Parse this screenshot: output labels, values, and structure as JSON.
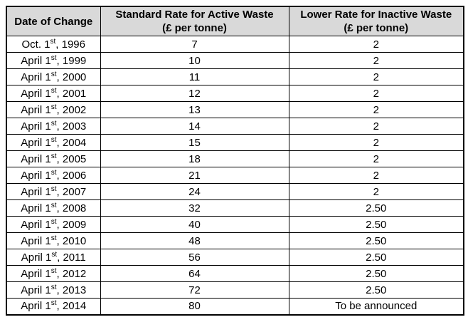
{
  "colors": {
    "header_bg": "#d9d9d9",
    "border": "#000000",
    "page_bg": "#ffffff",
    "text": "#000000"
  },
  "table": {
    "headers": [
      {
        "line1": "Date of Change",
        "line2": ""
      },
      {
        "line1": "Standard Rate for Active Waste",
        "line2": "(£ per tonne)"
      },
      {
        "line1": "Lower Rate for Inactive Waste",
        "line2": "(£ per tonne)"
      }
    ],
    "rows": [
      {
        "date_main": "Oct. 1",
        "date_sup": "st",
        "date_rest": ", 1996",
        "standard": "7",
        "lower": "2"
      },
      {
        "date_main": "April 1",
        "date_sup": "st",
        "date_rest": ", 1999",
        "standard": "10",
        "lower": "2"
      },
      {
        "date_main": "April 1",
        "date_sup": "st",
        "date_rest": ", 2000",
        "standard": "11",
        "lower": "2"
      },
      {
        "date_main": "April 1",
        "date_sup": "st",
        "date_rest": ", 2001",
        "standard": "12",
        "lower": "2"
      },
      {
        "date_main": "April 1",
        "date_sup": "st",
        "date_rest": ", 2002",
        "standard": "13",
        "lower": "2"
      },
      {
        "date_main": "April 1",
        "date_sup": "st",
        "date_rest": ", 2003",
        "standard": "14",
        "lower": "2"
      },
      {
        "date_main": "April 1",
        "date_sup": "st",
        "date_rest": ", 2004",
        "standard": "15",
        "lower": "2"
      },
      {
        "date_main": "April 1",
        "date_sup": "st",
        "date_rest": ", 2005",
        "standard": "18",
        "lower": "2"
      },
      {
        "date_main": "April 1",
        "date_sup": "st",
        "date_rest": ", 2006",
        "standard": "21",
        "lower": "2"
      },
      {
        "date_main": "April 1",
        "date_sup": "st",
        "date_rest": ", 2007",
        "standard": "24",
        "lower": "2"
      },
      {
        "date_main": "April 1",
        "date_sup": "st",
        "date_rest": ", 2008",
        "standard": "32",
        "lower": "2.50"
      },
      {
        "date_main": "April 1",
        "date_sup": "st",
        "date_rest": ", 2009",
        "standard": "40",
        "lower": "2.50"
      },
      {
        "date_main": "April 1",
        "date_sup": "st",
        "date_rest": ", 2010",
        "standard": "48",
        "lower": "2.50"
      },
      {
        "date_main": "April 1",
        "date_sup": "st",
        "date_rest": ", 2011",
        "standard": "56",
        "lower": "2.50"
      },
      {
        "date_main": "April 1",
        "date_sup": "st",
        "date_rest": ", 2012",
        "standard": "64",
        "lower": "2.50"
      },
      {
        "date_main": "April 1",
        "date_sup": "st",
        "date_rest": ", 2013",
        "standard": "72",
        "lower": "2.50"
      },
      {
        "date_main": "April 1",
        "date_sup": "st",
        "date_rest": ", 2014",
        "standard": "80",
        "lower": "To be announced"
      }
    ]
  }
}
